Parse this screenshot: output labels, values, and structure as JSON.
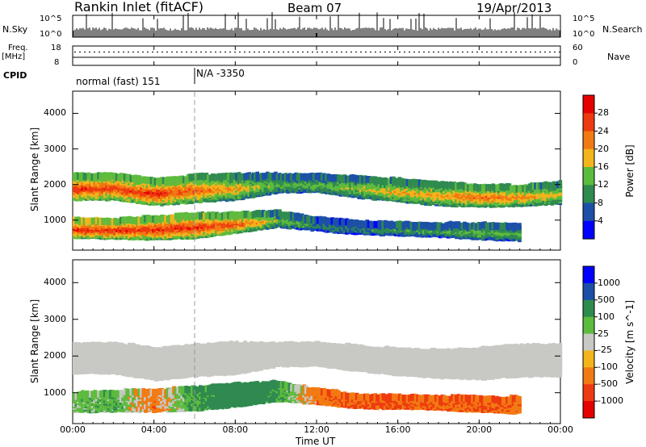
{
  "header": {
    "station": "Rankin Inlet (fitACF)",
    "beam": "Beam 07",
    "date": "19/Apr/2013"
  },
  "top_panels": {
    "nsky_label": "N.Sky",
    "nsky_ticks": [
      "10^5",
      "10^0"
    ],
    "nsearch_label": "N.Search",
    "nsearch_ticks": [
      "10^5",
      "10^0"
    ],
    "freq_label": "Freq.",
    "freq_unit": "[MHz]",
    "freq_ticks": [
      "18",
      "8"
    ],
    "nave_label": "Nave",
    "nave_ticks": [
      "60",
      "0"
    ],
    "cpid_label": "CPID",
    "cpid_segments": [
      {
        "name": "normal (fast) 151",
        "start_hour": 0,
        "end_hour": 6
      },
      {
        "name": "N/A -3350",
        "start_hour": 6,
        "end_hour": 24
      }
    ]
  },
  "chart_data": [
    {
      "type": "heatmap",
      "ylabel": "Slant Range [km]",
      "y_ticks": [
        1000,
        2000,
        3000,
        4000
      ],
      "ylim": [
        180,
        4600
      ],
      "x_ticks": [
        "00:00",
        "04:00",
        "08:00",
        "12:00",
        "16:00",
        "20:00",
        "00:00"
      ],
      "xlim_hours": [
        0,
        24
      ],
      "colorbar_label": "Power [dB]",
      "colorbar_ticks": [
        "28",
        "24",
        "20",
        "16",
        "12",
        "8",
        "4"
      ],
      "colorscale": [
        "#0000ff",
        "#1c4fa8",
        "#2f8a50",
        "#5dbb3e",
        "#f3b41c",
        "#f27a12",
        "#ee3a10",
        "#e60000"
      ],
      "bands": [
        {
          "name": "upper",
          "hours": [
            0,
            2,
            4,
            6,
            8,
            10,
            12,
            14,
            16,
            18,
            20,
            22,
            24
          ],
          "center_km": [
            2050,
            2050,
            1900,
            2000,
            2050,
            2150,
            2150,
            2050,
            1950,
            1850,
            1800,
            1800,
            1900
          ],
          "halfwidth_km": [
            300,
            300,
            300,
            320,
            300,
            200,
            180,
            240,
            250,
            260,
            240,
            220,
            250
          ],
          "peak_value": [
            28,
            26,
            28,
            24,
            20,
            14,
            14,
            16,
            20,
            20,
            24,
            22,
            18
          ]
        },
        {
          "name": "lower",
          "hours": [
            0,
            2,
            4,
            6,
            8,
            10,
            12,
            14,
            16,
            18,
            20,
            22
          ],
          "center_km": [
            900,
            880,
            900,
            960,
            1050,
            1150,
            1000,
            900,
            870,
            840,
            800,
            770
          ],
          "halfwidth_km": [
            220,
            220,
            260,
            280,
            220,
            160,
            120,
            120,
            120,
            130,
            160,
            170
          ],
          "peak_value": [
            28,
            28,
            28,
            28,
            26,
            16,
            10,
            10,
            12,
            12,
            14,
            14
          ]
        }
      ]
    },
    {
      "type": "heatmap",
      "ylabel": "Slant Range [km]",
      "y_ticks": [
        1000,
        2000,
        3000,
        4000
      ],
      "ylim": [
        180,
        4600
      ],
      "x_ticks": [
        "00:00",
        "04:00",
        "08:00",
        "12:00",
        "16:00",
        "20:00",
        "00:00"
      ],
      "xlim_hours": [
        0,
        24
      ],
      "xlabel": "Time UT",
      "colorbar_label": "Velocity [m s^-1]",
      "colorbar_ticks": [
        "1000",
        "500",
        "100",
        "25",
        "-25",
        "-100",
        "-500",
        "-1000"
      ],
      "colorscale": [
        "#e60000",
        "#ee3a10",
        "#f27a12",
        "#f3b41c",
        "#c8c8c4",
        "#5dbb3e",
        "#2f8a50",
        "#1c4fa8",
        "#0000ff"
      ],
      "bands": [
        {
          "name": "ground-scatter",
          "hours": [
            0,
            2,
            4,
            6,
            8,
            10,
            12,
            14,
            16,
            18,
            20,
            22,
            24
          ],
          "center_km": [
            2050,
            2050,
            1900,
            2000,
            2050,
            2150,
            2150,
            2050,
            1950,
            1900,
            1900,
            2000,
            2000
          ],
          "halfwidth_km": [
            350,
            350,
            380,
            380,
            360,
            260,
            250,
            280,
            300,
            320,
            360,
            380,
            380
          ],
          "peak_value": [
            0,
            0,
            0,
            0,
            0,
            0,
            0,
            0,
            0,
            0,
            0,
            0,
            0
          ]
        },
        {
          "name": "lower",
          "hours": [
            0,
            2,
            4,
            6,
            8,
            10,
            12,
            14,
            16,
            18,
            20,
            22
          ],
          "center_km": [
            850,
            880,
            900,
            950,
            1050,
            1150,
            1000,
            880,
            860,
            840,
            800,
            770
          ],
          "halfwidth_km": [
            200,
            220,
            240,
            260,
            250,
            200,
            140,
            130,
            120,
            130,
            150,
            160
          ],
          "peak_value": [
            100,
            200,
            -200,
            300,
            500,
            300,
            -200,
            -300,
            -300,
            -300,
            -300,
            -200
          ]
        }
      ]
    }
  ]
}
